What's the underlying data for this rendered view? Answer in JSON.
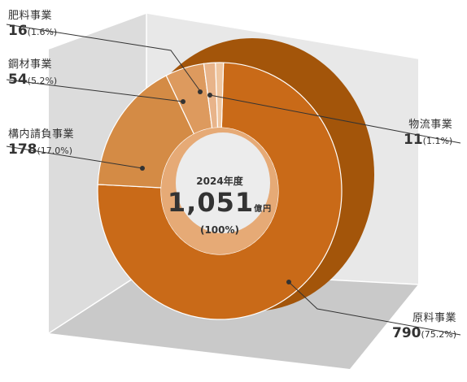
{
  "chart_data": {
    "type": "pie",
    "title": "",
    "center": {
      "year": "2024年度",
      "total": "1,051",
      "unit": "億円",
      "total_pct": "(100%)"
    },
    "segments": [
      {
        "name": "原料事業",
        "value": 790,
        "value_label": "790",
        "pct": "(75.2%)",
        "color": "#c96a18"
      },
      {
        "name": "構内請負事業",
        "value": 178,
        "value_label": "178",
        "pct": "(17.0%)",
        "color": "#d48b45"
      },
      {
        "name": "鋼材事業",
        "value": 54,
        "value_label": "54",
        "pct": "(5.2%)",
        "color": "#dd9a5e"
      },
      {
        "name": "肥料事業",
        "value": 16,
        "value_label": "16",
        "pct": "(1.6%)",
        "color": "#e8b48a"
      },
      {
        "name": "物流事業",
        "value": 11,
        "value_label": "11",
        "pct": "(1.1%)",
        "color": "#efc6a0"
      }
    ]
  }
}
